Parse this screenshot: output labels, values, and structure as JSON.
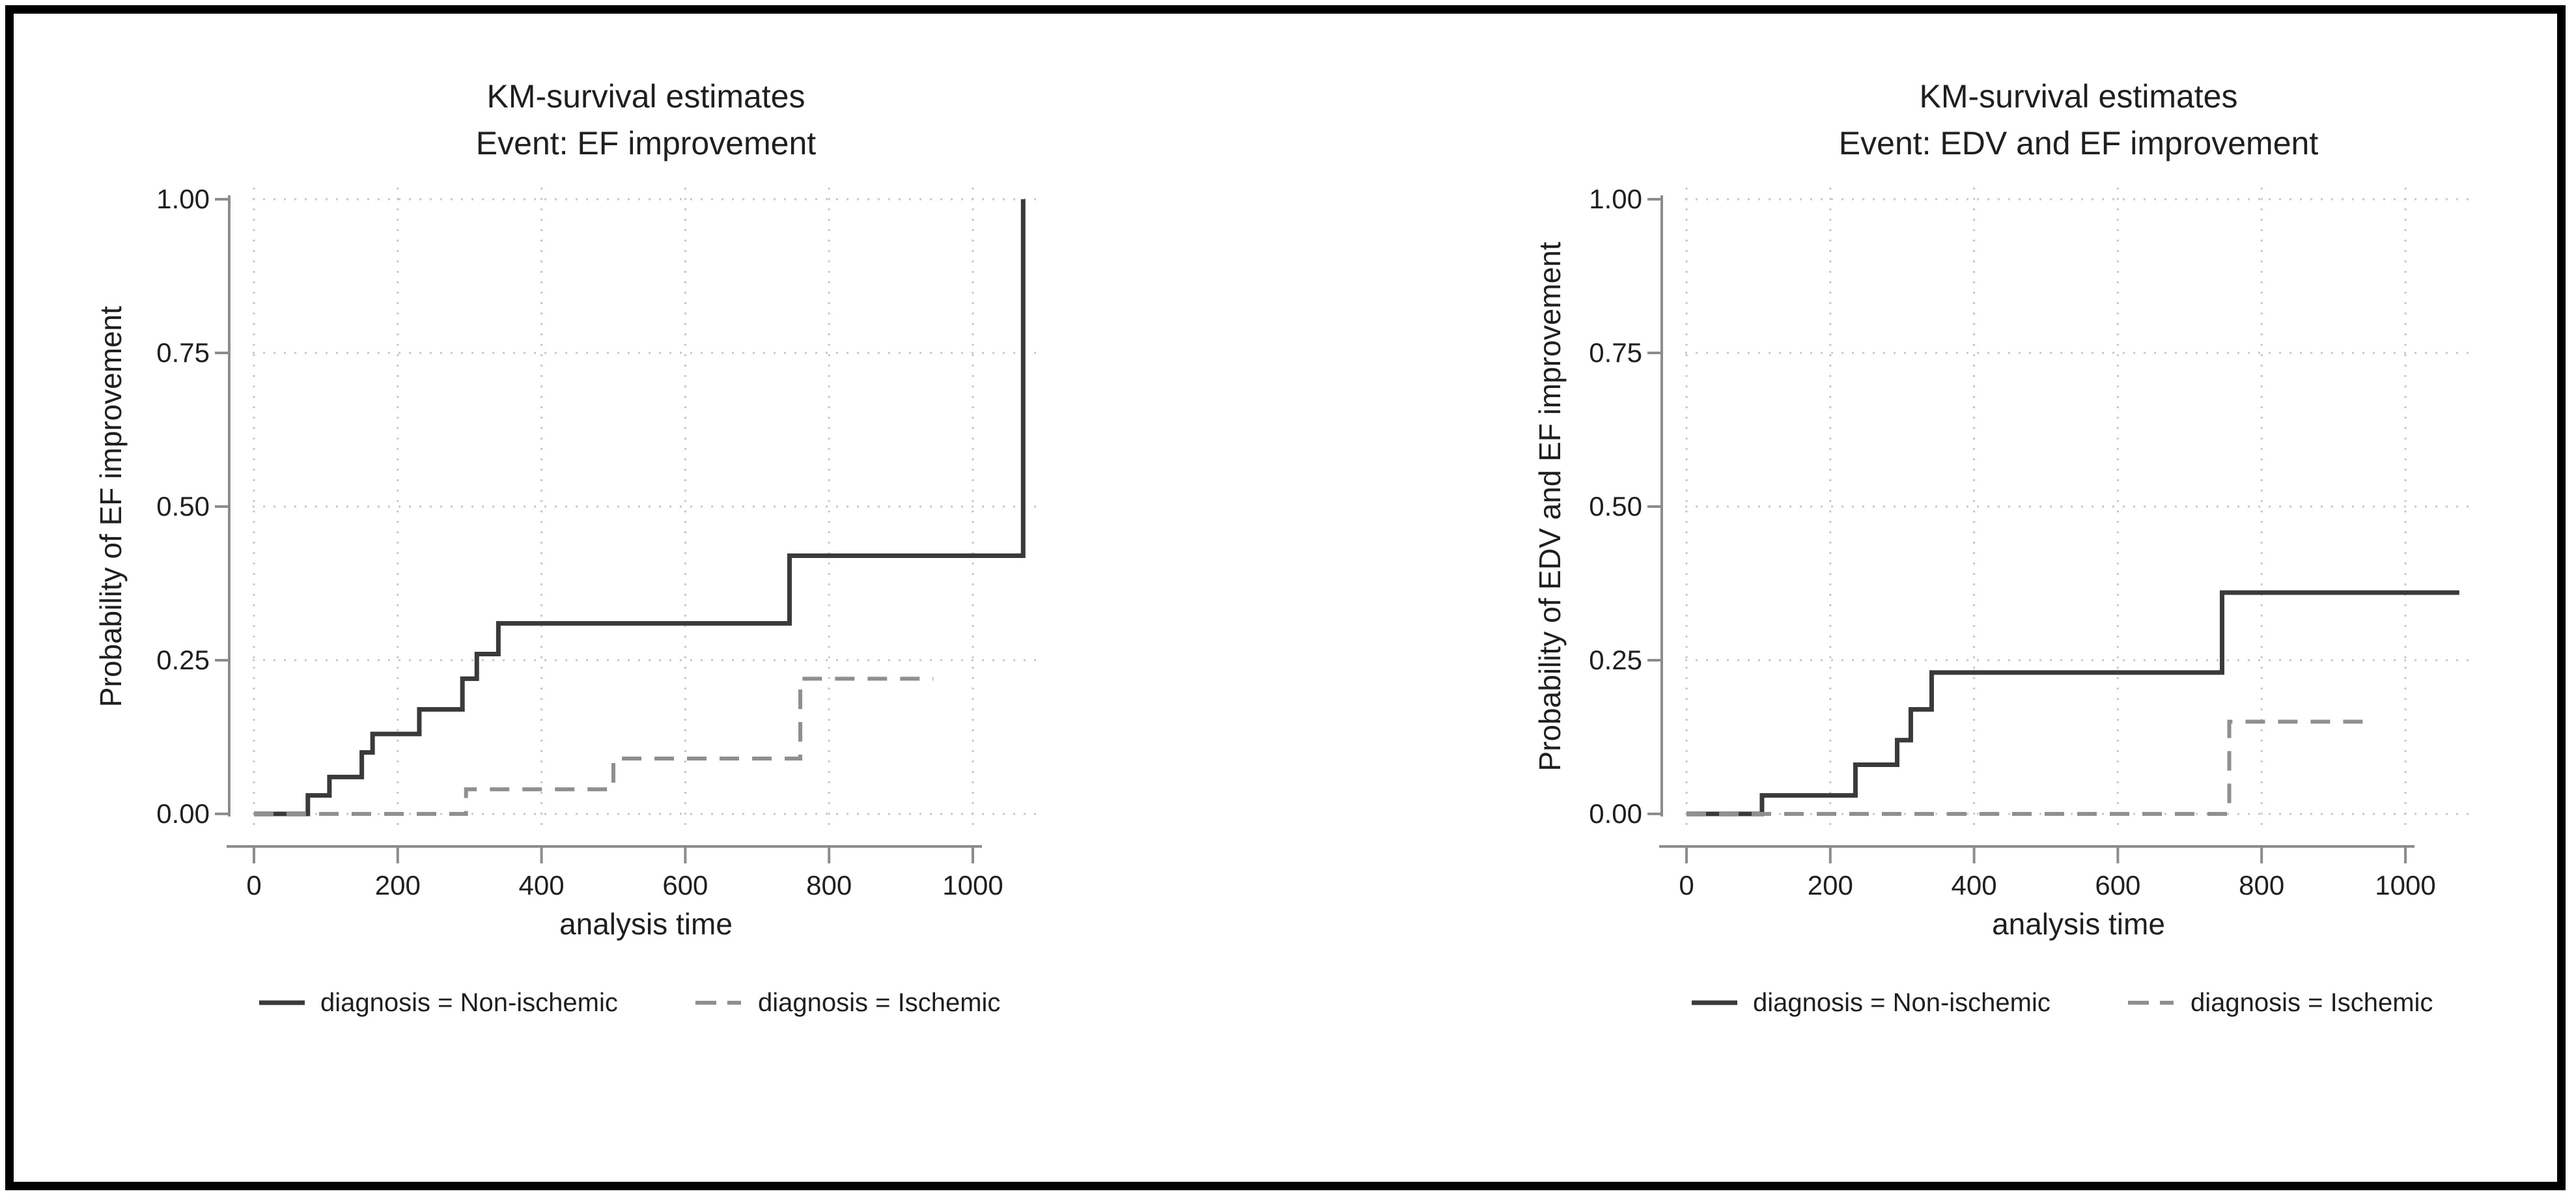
{
  "page": {
    "background": "#ffffff",
    "border_color": "#000000"
  },
  "colors": {
    "non_ischemic_line": "#3a3a3a",
    "ischemic_line": "#8f8f8f",
    "axis": "#8c8c8c",
    "grid": "#c7c7c7",
    "text": "#1f1f1f"
  },
  "chart_data": [
    {
      "type": "line",
      "subtype": "kaplan-meier-step-failure",
      "title": "KM-survival estimates",
      "subtitle": "Event: EF improvement",
      "xlabel": "analysis time",
      "ylabel": "Probability of EF improvement",
      "xlim": [
        0,
        1090
      ],
      "ylim": [
        0,
        1
      ],
      "grid": true,
      "legend_position": "bottom",
      "x_tick_labels": [
        "0",
        "200",
        "400",
        "600",
        "800",
        "1000"
      ],
      "y_tick_labels": [
        "0.00",
        "0.25",
        "0.50",
        "0.75",
        "1.00"
      ],
      "series": [
        {
          "name": "diagnosis = Non-ischemic",
          "line_style": "solid",
          "color": "#3a3a3a",
          "start": [
            0,
            0.0
          ],
          "steps": [
            [
              75,
              0.03
            ],
            [
              105,
              0.06
            ],
            [
              150,
              0.1
            ],
            [
              165,
              0.13
            ],
            [
              230,
              0.17
            ],
            [
              290,
              0.22
            ],
            [
              310,
              0.26
            ],
            [
              340,
              0.31
            ],
            [
              745,
              0.42
            ],
            [
              1070,
              1.0
            ]
          ],
          "end_time": 1070
        },
        {
          "name": "diagnosis = Ischemic",
          "line_style": "dashed",
          "color": "#8f8f8f",
          "start": [
            0,
            0.0
          ],
          "steps": [
            [
              295,
              0.04
            ],
            [
              500,
              0.09
            ],
            [
              760,
              0.22
            ]
          ],
          "end_time": 945
        }
      ]
    },
    {
      "type": "line",
      "subtype": "kaplan-meier-step-failure",
      "title": "KM-survival estimates",
      "subtitle": "Event: EDV and EF improvement",
      "xlabel": "analysis time",
      "ylabel": "Probability of EDV and EF improvement",
      "xlim": [
        0,
        1090
      ],
      "ylim": [
        0,
        1
      ],
      "grid": true,
      "legend_position": "bottom",
      "x_tick_labels": [
        "0",
        "200",
        "400",
        "600",
        "800",
        "1000"
      ],
      "y_tick_labels": [
        "0.00",
        "0.25",
        "0.50",
        "0.75",
        "1.00"
      ],
      "series": [
        {
          "name": "diagnosis = Non-ischemic",
          "line_style": "solid",
          "color": "#3a3a3a",
          "start": [
            0,
            0.0
          ],
          "steps": [
            [
              105,
              0.03
            ],
            [
              235,
              0.08
            ],
            [
              293,
              0.12
            ],
            [
              312,
              0.17
            ],
            [
              341,
              0.23
            ],
            [
              745,
              0.36
            ]
          ],
          "end_time": 1075
        },
        {
          "name": "diagnosis = Ischemic",
          "line_style": "dashed",
          "color": "#8f8f8f",
          "start": [
            0,
            0.0
          ],
          "steps": [
            [
              755,
              0.15
            ]
          ],
          "end_time": 945
        }
      ]
    }
  ]
}
